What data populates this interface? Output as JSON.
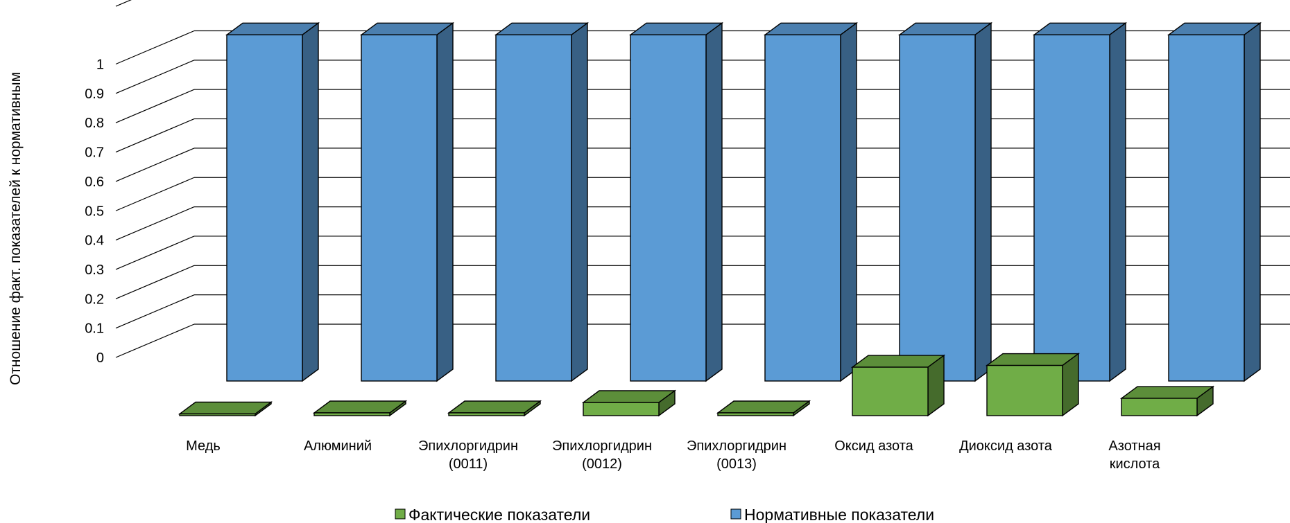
{
  "chart_data": {
    "type": "bar",
    "title": "",
    "ylabel": "Отношение факт. показателей к нормативным",
    "xlabel": "",
    "ylim": [
      0,
      1
    ],
    "yticks": [
      0,
      0.1,
      0.2,
      0.3,
      0.4,
      0.5,
      0.6,
      0.7,
      0.8,
      0.9,
      1
    ],
    "grid": true,
    "legend_position": "bottom",
    "categories": [
      [
        "Медь"
      ],
      [
        "Алюминий"
      ],
      [
        "Эпихлоргидрин",
        "(0011)"
      ],
      [
        "Эпихлоргидрин",
        "(0012)"
      ],
      [
        "Эпихлоргидрин",
        "(0013)"
      ],
      [
        "Оксид азота"
      ],
      [
        "Диоксид азота"
      ],
      [
        "Азотная",
        "кислота"
      ]
    ],
    "series": [
      {
        "name": "Фактические показатели",
        "color": "#70ad47",
        "values": [
          0.005,
          0.008,
          0.008,
          0.038,
          0.008,
          0.14,
          0.145,
          0.05
        ]
      },
      {
        "name": "Нормативные показатели",
        "color": "#5b9bd5",
        "values": [
          1,
          1,
          1,
          1,
          1,
          1,
          1,
          1
        ]
      }
    ]
  }
}
